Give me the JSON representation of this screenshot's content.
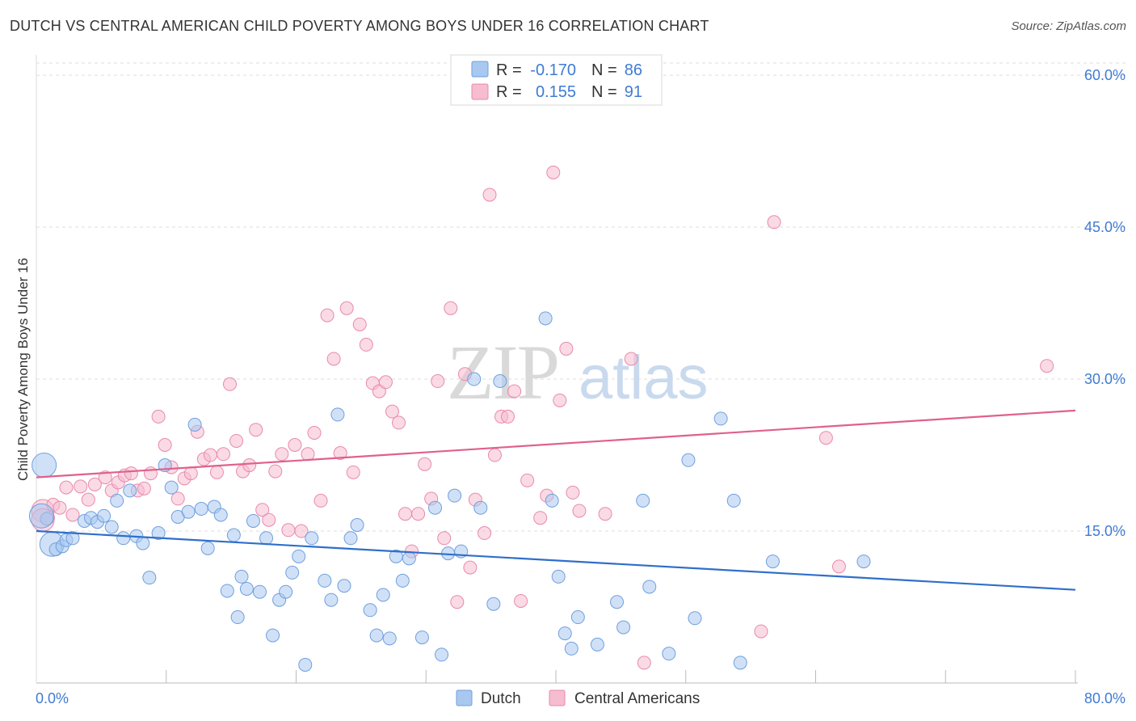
{
  "header": {
    "title": "DUTCH VS CENTRAL AMERICAN CHILD POVERTY AMONG BOYS UNDER 16 CORRELATION CHART",
    "source": "Source: ZipAtlas.com"
  },
  "watermark": {
    "zip": "ZIP",
    "atlas": "atlas"
  },
  "colors": {
    "dutch_fill": "#a9c8f0",
    "dutch_stroke": "#6f9fde",
    "dutch_line": "#2f6fca",
    "ca_fill": "#f6bcd0",
    "ca_stroke": "#e98aab",
    "ca_line": "#e0608e",
    "tick_blue": "#3f7bd3",
    "grid": "#dddddd"
  },
  "legend": {
    "rows": [
      {
        "r_label": "R =",
        "r_value": "-0.170",
        "n_label": "N =",
        "n_value": "86"
      },
      {
        "r_label": "R =",
        "r_value": "0.155",
        "n_label": "N =",
        "n_value": "91"
      }
    ]
  },
  "bottom_legend": [
    "Dutch",
    "Central Americans"
  ],
  "chart_data": {
    "type": "scatter",
    "title": "DUTCH VS CENTRAL AMERICAN CHILD POVERTY AMONG BOYS UNDER 16 CORRELATION CHART",
    "xlabel": "",
    "ylabel": "Child Poverty Among Boys Under 16",
    "xlim": [
      0,
      80
    ],
    "ylim": [
      0,
      62
    ],
    "x_tick_labels": [
      "0.0%",
      "80.0%"
    ],
    "y_ticks": [
      15,
      30,
      45,
      60
    ],
    "y_tick_labels": [
      "15.0%",
      "30.0%",
      "45.0%",
      "60.0%"
    ],
    "grid": "horizontal dashed",
    "legend_position": "top-center",
    "series": [
      {
        "name": "Dutch",
        "r": -0.17,
        "n": 86,
        "trend": {
          "x": [
            0,
            80
          ],
          "y": [
            15.0,
            9.2
          ]
        },
        "points": [
          [
            0.6,
            21.5
          ],
          [
            0.8,
            16.2
          ],
          [
            1.2,
            13.7
          ],
          [
            1.5,
            13.2
          ],
          [
            2.0,
            13.5
          ],
          [
            2.3,
            14.1
          ],
          [
            2.8,
            14.3
          ],
          [
            3.7,
            16.0
          ],
          [
            4.2,
            16.3
          ],
          [
            4.7,
            15.9
          ],
          [
            5.2,
            16.5
          ],
          [
            5.8,
            15.4
          ],
          [
            6.2,
            18.0
          ],
          [
            6.7,
            14.3
          ],
          [
            7.2,
            19.0
          ],
          [
            7.7,
            14.5
          ],
          [
            8.2,
            13.8
          ],
          [
            8.7,
            10.4
          ],
          [
            9.4,
            14.8
          ],
          [
            9.9,
            21.5
          ],
          [
            10.4,
            19.3
          ],
          [
            10.9,
            16.4
          ],
          [
            11.7,
            16.9
          ],
          [
            12.2,
            25.5
          ],
          [
            12.7,
            17.2
          ],
          [
            13.2,
            13.3
          ],
          [
            13.7,
            17.4
          ],
          [
            14.2,
            16.6
          ],
          [
            14.7,
            9.1
          ],
          [
            15.2,
            14.6
          ],
          [
            15.5,
            6.5
          ],
          [
            15.8,
            10.5
          ],
          [
            16.2,
            9.3
          ],
          [
            16.7,
            16.0
          ],
          [
            17.2,
            9.0
          ],
          [
            17.7,
            14.3
          ],
          [
            18.2,
            4.7
          ],
          [
            18.7,
            8.2
          ],
          [
            19.2,
            9.0
          ],
          [
            19.7,
            10.9
          ],
          [
            20.2,
            12.5
          ],
          [
            20.7,
            1.8
          ],
          [
            21.2,
            14.3
          ],
          [
            22.2,
            10.1
          ],
          [
            22.7,
            8.2
          ],
          [
            23.2,
            26.5
          ],
          [
            23.7,
            9.6
          ],
          [
            24.2,
            14.3
          ],
          [
            24.7,
            15.6
          ],
          [
            25.7,
            7.2
          ],
          [
            26.2,
            4.7
          ],
          [
            26.7,
            8.7
          ],
          [
            27.2,
            4.4
          ],
          [
            27.7,
            12.5
          ],
          [
            28.2,
            10.1
          ],
          [
            28.7,
            12.3
          ],
          [
            29.7,
            4.5
          ],
          [
            30.7,
            17.3
          ],
          [
            31.2,
            2.8
          ],
          [
            31.7,
            12.8
          ],
          [
            32.2,
            18.5
          ],
          [
            32.7,
            13.0
          ],
          [
            33.7,
            30.0
          ],
          [
            34.2,
            17.3
          ],
          [
            35.2,
            7.8
          ],
          [
            35.7,
            29.8
          ],
          [
            39.2,
            36.0
          ],
          [
            39.7,
            18.0
          ],
          [
            40.2,
            10.5
          ],
          [
            40.7,
            4.9
          ],
          [
            41.2,
            3.4
          ],
          [
            41.7,
            6.5
          ],
          [
            43.2,
            3.8
          ],
          [
            44.7,
            8.0
          ],
          [
            45.2,
            5.5
          ],
          [
            46.7,
            18.0
          ],
          [
            47.2,
            9.5
          ],
          [
            48.7,
            2.9
          ],
          [
            50.2,
            22.0
          ],
          [
            50.7,
            6.4
          ],
          [
            52.7,
            26.1
          ],
          [
            53.7,
            18.0
          ],
          [
            54.2,
            2.0
          ],
          [
            56.7,
            12.0
          ],
          [
            63.7,
            12.0
          ],
          [
            0.4,
            16.5
          ]
        ]
      },
      {
        "name": "Central Americans",
        "r": 0.155,
        "n": 91,
        "trend": {
          "x": [
            0,
            80
          ],
          "y": [
            20.3,
            26.9
          ]
        },
        "points": [
          [
            0.5,
            17.0
          ],
          [
            0.9,
            16.3
          ],
          [
            1.3,
            17.6
          ],
          [
            1.8,
            17.3
          ],
          [
            2.3,
            19.3
          ],
          [
            2.8,
            16.6
          ],
          [
            3.4,
            19.4
          ],
          [
            4.0,
            18.1
          ],
          [
            4.5,
            19.6
          ],
          [
            5.3,
            20.3
          ],
          [
            5.8,
            19.0
          ],
          [
            6.3,
            19.8
          ],
          [
            6.8,
            20.5
          ],
          [
            7.3,
            20.7
          ],
          [
            7.8,
            19.0
          ],
          [
            8.3,
            19.2
          ],
          [
            8.8,
            20.7
          ],
          [
            9.4,
            26.3
          ],
          [
            9.9,
            23.5
          ],
          [
            10.4,
            21.3
          ],
          [
            10.9,
            18.2
          ],
          [
            11.4,
            20.2
          ],
          [
            11.9,
            20.7
          ],
          [
            12.4,
            24.8
          ],
          [
            12.9,
            22.1
          ],
          [
            13.4,
            22.5
          ],
          [
            13.9,
            20.8
          ],
          [
            14.4,
            22.6
          ],
          [
            14.9,
            29.5
          ],
          [
            15.4,
            23.9
          ],
          [
            15.9,
            20.9
          ],
          [
            16.4,
            21.5
          ],
          [
            16.9,
            25.0
          ],
          [
            17.4,
            17.1
          ],
          [
            17.9,
            16.1
          ],
          [
            18.4,
            20.9
          ],
          [
            18.9,
            22.6
          ],
          [
            19.4,
            15.1
          ],
          [
            19.9,
            23.5
          ],
          [
            20.4,
            15.0
          ],
          [
            20.9,
            22.6
          ],
          [
            21.4,
            24.7
          ],
          [
            21.9,
            18.0
          ],
          [
            22.4,
            36.3
          ],
          [
            22.9,
            32.0
          ],
          [
            23.4,
            22.7
          ],
          [
            23.9,
            37.0
          ],
          [
            24.4,
            20.8
          ],
          [
            24.9,
            35.4
          ],
          [
            25.4,
            33.4
          ],
          [
            25.9,
            29.6
          ],
          [
            26.4,
            28.8
          ],
          [
            26.9,
            29.7
          ],
          [
            27.4,
            26.8
          ],
          [
            27.9,
            25.7
          ],
          [
            28.4,
            16.7
          ],
          [
            28.9,
            13.0
          ],
          [
            29.4,
            16.7
          ],
          [
            29.9,
            21.6
          ],
          [
            30.4,
            18.2
          ],
          [
            30.9,
            29.8
          ],
          [
            31.4,
            14.3
          ],
          [
            31.9,
            37.0
          ],
          [
            32.4,
            8.0
          ],
          [
            33.0,
            30.5
          ],
          [
            33.4,
            11.4
          ],
          [
            33.8,
            18.1
          ],
          [
            34.5,
            14.8
          ],
          [
            34.9,
            48.2
          ],
          [
            35.3,
            22.5
          ],
          [
            35.8,
            26.3
          ],
          [
            36.3,
            26.3
          ],
          [
            36.8,
            28.8
          ],
          [
            37.3,
            8.1
          ],
          [
            37.8,
            20.0
          ],
          [
            38.8,
            16.3
          ],
          [
            39.3,
            18.5
          ],
          [
            39.8,
            50.4
          ],
          [
            40.3,
            27.9
          ],
          [
            40.8,
            33.0
          ],
          [
            41.3,
            18.8
          ],
          [
            41.8,
            17.0
          ],
          [
            43.8,
            16.7
          ],
          [
            45.8,
            32.0
          ],
          [
            46.8,
            2.0
          ],
          [
            55.8,
            5.1
          ],
          [
            56.8,
            45.5
          ],
          [
            60.8,
            24.2
          ],
          [
            61.8,
            11.5
          ],
          [
            77.8,
            31.3
          ],
          [
            0.5,
            16.1
          ]
        ]
      }
    ]
  }
}
